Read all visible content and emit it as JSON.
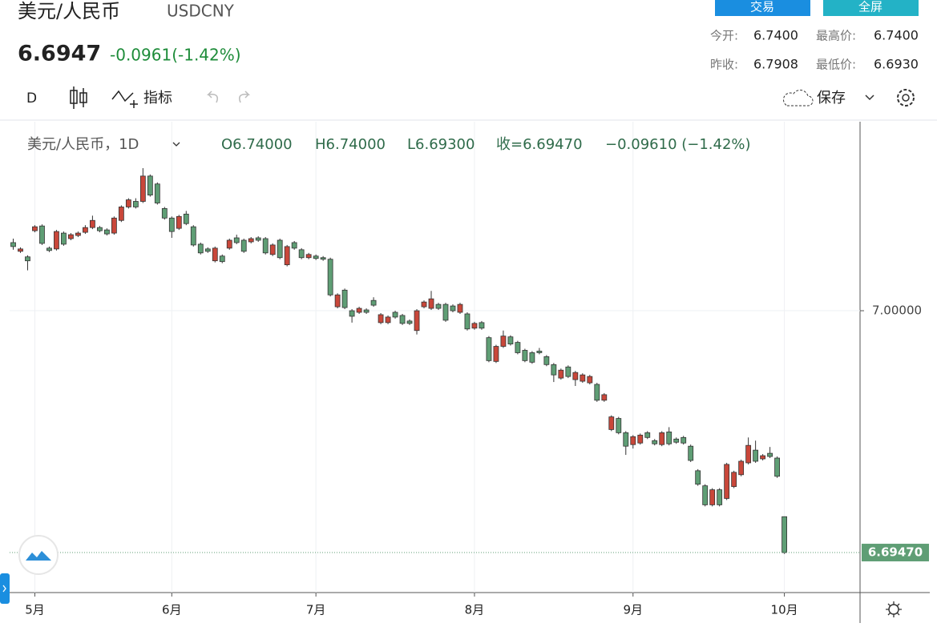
{
  "header": {
    "title": "美元/人民币",
    "symbol": "USDCNY",
    "price": "6.6947",
    "change": "-0.0961(-1.42%)",
    "buttons": [
      "交易",
      "全屏"
    ],
    "stats": [
      {
        "label": "今开:",
        "value": "6.7400"
      },
      {
        "label": "最高价:",
        "value": "6.7400"
      },
      {
        "label": "昨收:",
        "value": "6.7908"
      },
      {
        "label": "最低价:",
        "value": "6.6930"
      }
    ]
  },
  "toolbar": {
    "interval": "D",
    "indicators": "指标",
    "save": "保存"
  },
  "chart_data": {
    "type": "candlestick",
    "title": "美元/人民币，1D",
    "legend": {
      "open": "O6.74000",
      "high": "H6.74000",
      "low": "L6.69300",
      "close": "收=6.69470",
      "change": "−0.09610 (−1.42%)"
    },
    "up_color": "#c9473a",
    "down_color": "#5f9e75",
    "x": [
      0,
      1,
      2,
      3,
      4,
      5,
      6,
      7,
      8,
      9,
      10,
      11,
      12,
      13,
      14,
      15,
      16,
      17,
      18,
      19,
      20,
      21,
      22,
      23,
      24,
      25,
      26,
      27,
      28,
      29,
      30,
      31,
      32,
      33,
      34,
      35,
      36,
      37,
      38,
      39,
      40,
      41,
      42,
      43,
      44,
      45,
      46,
      47,
      48,
      49,
      50,
      51,
      52,
      53,
      54,
      55,
      56,
      57,
      58,
      59,
      60,
      61,
      62,
      63,
      64,
      65,
      66,
      67,
      68,
      69,
      70,
      71,
      72,
      73,
      74,
      75,
      76,
      77,
      78,
      79,
      80,
      81,
      82,
      83,
      84,
      85,
      86,
      87,
      88,
      89,
      90,
      91,
      92,
      93,
      94,
      95,
      96,
      97,
      98,
      99,
      100,
      101,
      102,
      103,
      104,
      105,
      106,
      107
    ],
    "open": [
      7.086,
      7.075,
      7.068,
      7.101,
      7.107,
      7.079,
      7.078,
      7.098,
      7.091,
      7.095,
      7.099,
      7.105,
      7.105,
      7.102,
      7.098,
      7.114,
      7.131,
      7.138,
      7.138,
      7.17,
      7.16,
      7.129,
      7.117,
      7.104,
      7.122,
      7.106,
      7.084,
      7.078,
      7.063,
      7.069,
      7.079,
      7.092,
      7.089,
      7.087,
      7.092,
      7.091,
      7.071,
      7.089,
      7.058,
      7.086,
      7.077,
      7.067,
      7.069,
      7.067,
      7.065,
      7.005,
      7.026,
      7.0,
      6.998,
      7.001,
      7.013,
      6.985,
      6.985,
      6.998,
      6.994,
      6.987,
      6.975,
      7.005,
      7.003,
      7.008,
      7.008,
      7.006,
      6.998,
      6.996,
      6.978,
      6.985,
      6.966,
      6.936,
      6.955,
      6.967,
      6.96,
      6.95,
      6.947,
      6.949,
      6.942,
      6.932,
      6.915,
      6.929,
      6.913,
      6.911,
      6.909,
      6.907,
      6.887,
      6.85,
      6.864,
      6.846,
      6.831,
      6.833,
      6.846,
      6.836,
      6.831,
      6.847,
      6.838,
      6.84,
      6.829,
      6.798,
      6.779,
      6.755,
      6.774,
      6.763,
      6.778,
      6.793,
      6.808,
      6.824,
      6.813,
      6.82,
      6.814,
      6.74
    ],
    "high": [
      7.091,
      7.08,
      7.07,
      7.108,
      7.109,
      7.081,
      7.102,
      7.1,
      7.098,
      7.1,
      7.108,
      7.12,
      7.107,
      7.104,
      7.119,
      7.133,
      7.142,
      7.142,
      7.18,
      7.172,
      7.162,
      7.131,
      7.119,
      7.121,
      7.126,
      7.108,
      7.086,
      7.08,
      7.081,
      7.071,
      7.091,
      7.096,
      7.091,
      7.093,
      7.094,
      7.093,
      7.085,
      7.091,
      7.083,
      7.088,
      7.079,
      7.073,
      7.071,
      7.069,
      7.067,
      7.022,
      7.028,
      7.002,
      7.005,
      7.003,
      7.017,
      6.997,
      6.994,
      7.0,
      6.996,
      6.989,
      7.002,
      7.013,
      7.025,
      7.01,
      7.01,
      7.008,
      7.01,
      6.998,
      6.986,
      6.987,
      6.968,
      6.957,
      6.975,
      6.969,
      6.962,
      6.952,
      6.949,
      6.953,
      6.944,
      6.934,
      6.927,
      6.931,
      6.924,
      6.921,
      6.919,
      6.909,
      6.896,
      6.868,
      6.866,
      6.848,
      6.843,
      6.845,
      6.848,
      6.838,
      6.848,
      6.853,
      6.84,
      6.842,
      6.831,
      6.8,
      6.781,
      6.776,
      6.776,
      6.808,
      6.798,
      6.812,
      6.84,
      6.836,
      6.819,
      6.828,
      6.816,
      6.74
    ],
    "low": [
      7.077,
      7.073,
      7.051,
      7.099,
      7.083,
      7.074,
      7.076,
      7.082,
      7.089,
      7.093,
      7.097,
      7.103,
      7.099,
      7.095,
      7.096,
      7.112,
      7.129,
      7.129,
      7.136,
      7.144,
      7.134,
      7.115,
      7.092,
      7.102,
      7.108,
      7.081,
      7.071,
      7.073,
      7.061,
      7.06,
      7.077,
      7.084,
      7.073,
      7.085,
      7.087,
      7.071,
      7.069,
      7.065,
      7.056,
      7.077,
      7.065,
      7.065,
      7.064,
      7.063,
      7.018,
      7.003,
      7.002,
      6.985,
      6.996,
      6.996,
      7.005,
      6.983,
      6.983,
      6.99,
      6.982,
      6.982,
      6.97,
      7.003,
      7.001,
      7.001,
      6.986,
      6.998,
      6.996,
      6.975,
      6.976,
      6.976,
      6.935,
      6.934,
      6.953,
      6.956,
      6.945,
      6.935,
      6.933,
      6.945,
      6.93,
      6.91,
      6.913,
      6.915,
      6.905,
      6.909,
      6.907,
      6.885,
      6.885,
      6.848,
      6.844,
      6.818,
      6.826,
      6.831,
      6.838,
      6.83,
      6.829,
      6.83,
      6.832,
      6.831,
      6.809,
      6.779,
      6.753,
      6.753,
      6.753,
      6.761,
      6.776,
      6.791,
      6.806,
      6.808,
      6.811,
      6.814,
      6.789,
      6.693
    ],
    "close": [
      7.081,
      7.078,
      7.063,
      7.106,
      7.085,
      7.076,
      7.1,
      7.084,
      7.096,
      7.098,
      7.105,
      7.114,
      7.101,
      7.097,
      7.117,
      7.131,
      7.14,
      7.131,
      7.17,
      7.146,
      7.136,
      7.117,
      7.1,
      7.119,
      7.11,
      7.083,
      7.073,
      7.075,
      7.079,
      7.062,
      7.089,
      7.086,
      7.075,
      7.091,
      7.089,
      7.073,
      7.083,
      7.067,
      7.081,
      7.079,
      7.067,
      7.071,
      7.066,
      7.065,
      7.02,
      7.02,
      7.004,
      6.993,
      7.003,
      6.998,
      7.007,
      6.995,
      6.992,
      6.992,
      6.984,
      6.984,
      7.0,
      7.011,
      7.015,
      7.003,
      6.988,
      7.0,
      7.008,
      6.977,
      6.984,
      6.978,
      6.937,
      6.955,
      6.968,
      6.958,
      6.947,
      6.937,
      6.935,
      6.947,
      6.932,
      6.919,
      6.925,
      6.917,
      6.922,
      6.919,
      6.917,
      6.887,
      6.894,
      6.866,
      6.846,
      6.829,
      6.841,
      6.843,
      6.84,
      6.832,
      6.846,
      6.832,
      6.834,
      6.833,
      6.811,
      6.781,
      6.755,
      6.774,
      6.755,
      6.806,
      6.796,
      6.81,
      6.83,
      6.81,
      6.817,
      6.816,
      6.791,
      6.6947
    ],
    "xlim": [
      -0.5,
      117.5
    ],
    "xticks": [
      {
        "value": 3,
        "label": "5月"
      },
      {
        "value": 22,
        "label": "6月"
      },
      {
        "value": 42,
        "label": "7月"
      },
      {
        "value": 64,
        "label": "8月"
      },
      {
        "value": 86,
        "label": "9月"
      },
      {
        "value": 107,
        "label": "10月"
      }
    ],
    "ylim": [
      6.6442,
      7.2386
    ],
    "yticks": [
      {
        "value": 7,
        "label": "7.00000"
      }
    ],
    "last_price": {
      "value": 6.6947,
      "label": "6.69470"
    },
    "grid": true
  }
}
